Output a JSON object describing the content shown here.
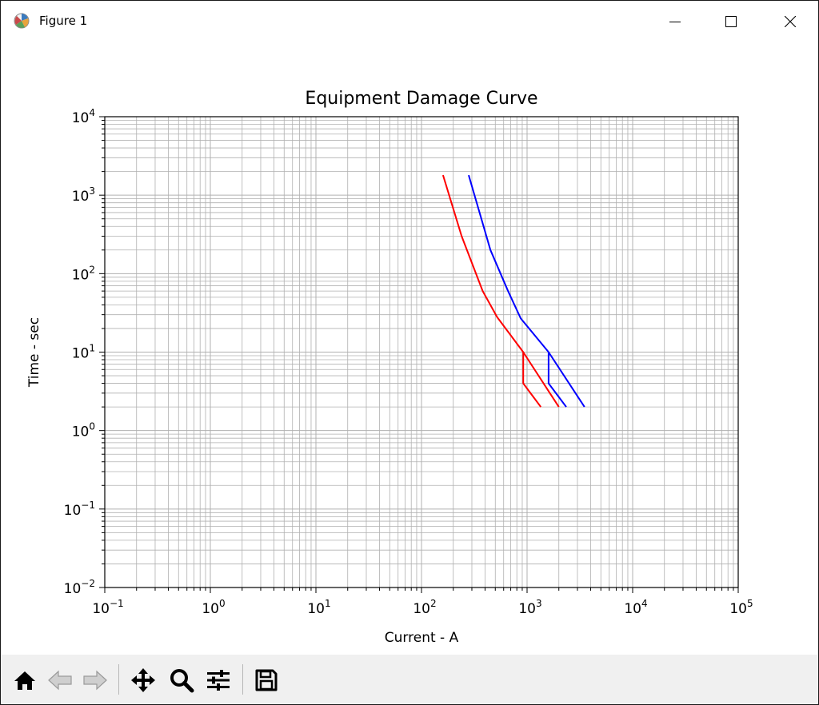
{
  "window": {
    "title": "Figure 1",
    "app_icon": "matplotlib-icon",
    "controls": [
      "minimize-icon",
      "maximize-icon",
      "close-icon"
    ]
  },
  "toolbar": {
    "buttons": [
      {
        "name": "home-button",
        "icon": "home-icon"
      },
      {
        "name": "back-button",
        "icon": "back-arrow-icon"
      },
      {
        "name": "forward-button",
        "icon": "forward-arrow-icon"
      },
      {
        "name": "pan-button",
        "icon": "pan-icon"
      },
      {
        "name": "zoom-button",
        "icon": "zoom-icon"
      },
      {
        "name": "configure-subplots-button",
        "icon": "sliders-icon"
      },
      {
        "name": "save-button",
        "icon": "save-icon"
      }
    ]
  },
  "chart_data": {
    "type": "line",
    "title": "Equipment Damage Curve",
    "xlabel": "Current - A",
    "ylabel": "Time - sec",
    "xscale": "log",
    "yscale": "log",
    "xlim": [
      0.1,
      100000
    ],
    "ylim": [
      0.01,
      10000
    ],
    "x_ticks": [
      {
        "base": "10",
        "exp": "−1"
      },
      {
        "base": "10",
        "exp": "0"
      },
      {
        "base": "10",
        "exp": "1"
      },
      {
        "base": "10",
        "exp": "2"
      },
      {
        "base": "10",
        "exp": "3"
      },
      {
        "base": "10",
        "exp": "4"
      },
      {
        "base": "10",
        "exp": "5"
      }
    ],
    "y_ticks": [
      {
        "base": "10",
        "exp": "−2"
      },
      {
        "base": "10",
        "exp": "−1"
      },
      {
        "base": "10",
        "exp": "0"
      },
      {
        "base": "10",
        "exp": "1"
      },
      {
        "base": "10",
        "exp": "2"
      },
      {
        "base": "10",
        "exp": "3"
      },
      {
        "base": "10",
        "exp": "4"
      }
    ],
    "grid": "major-and-minor",
    "series": [
      {
        "color": "#ff0000",
        "points": [
          [
            160,
            1800
          ],
          [
            240,
            300
          ],
          [
            380,
            60
          ],
          [
            520,
            28
          ],
          [
            920,
            10
          ],
          [
            2000,
            2
          ]
        ]
      },
      {
        "color": "#ff0000",
        "points": [
          [
            920,
            10
          ],
          [
            920,
            4
          ],
          [
            1350,
            2
          ]
        ]
      },
      {
        "color": "#0000ff",
        "points": [
          [
            280,
            1800
          ],
          [
            450,
            200
          ],
          [
            660,
            60
          ],
          [
            870,
            27
          ],
          [
            1600,
            10
          ],
          [
            3500,
            2
          ]
        ]
      },
      {
        "color": "#0000ff",
        "points": [
          [
            1600,
            10
          ],
          [
            1600,
            4
          ],
          [
            2350,
            2
          ]
        ]
      }
    ]
  }
}
